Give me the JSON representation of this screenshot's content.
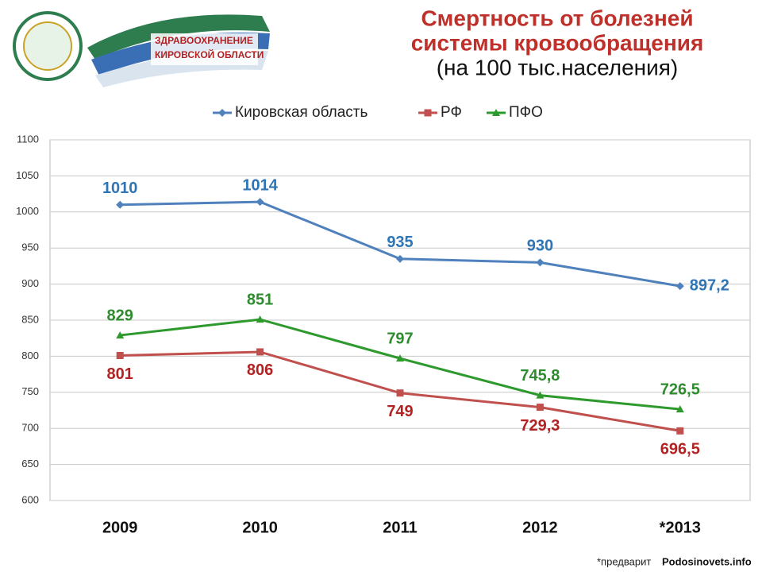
{
  "header": {
    "logo_lines": [
      "ЗДРАВООХРАНЕНИЕ",
      "КИРОВСКОЙ ОБЛАСТИ"
    ],
    "title_lines": [
      "Смертность от болезней",
      "системы кровообращения",
      "(на 100 тыс.населения)"
    ]
  },
  "chart_data": {
    "type": "line",
    "categories": [
      "2009",
      "2010",
      "2011",
      "2012",
      "*2013"
    ],
    "series": [
      {
        "name": "Кировская область",
        "color": "#4f81bd",
        "label_color": "#2e75b6",
        "marker": "diamond",
        "values": [
          1010,
          1014,
          935,
          930,
          897.2
        ],
        "value_labels": [
          "1010",
          "1014",
          "935",
          "930",
          "897,2"
        ]
      },
      {
        "name": "РФ",
        "color": "#c0504d",
        "label_color": "#b22222",
        "marker": "square",
        "values": [
          801,
          806,
          749,
          729.3,
          696.5
        ],
        "value_labels": [
          "801",
          "806",
          "749",
          "729,3",
          "696,5"
        ]
      },
      {
        "name": "ПФО",
        "color": "#2e9a2e",
        "label_color": "#2e8b2e",
        "marker": "triangle",
        "values": [
          829,
          851,
          797,
          745.8,
          726.5
        ],
        "value_labels": [
          "829",
          "851",
          "797",
          "745,8",
          "726,5"
        ]
      }
    ],
    "ylim": [
      600,
      1100
    ],
    "yticks": [
      600,
      650,
      700,
      750,
      800,
      850,
      900,
      950,
      1000,
      1050,
      1100
    ],
    "grid": true,
    "legend": "top"
  },
  "footnote": "*предварит",
  "watermark": "Podosinovets.info"
}
